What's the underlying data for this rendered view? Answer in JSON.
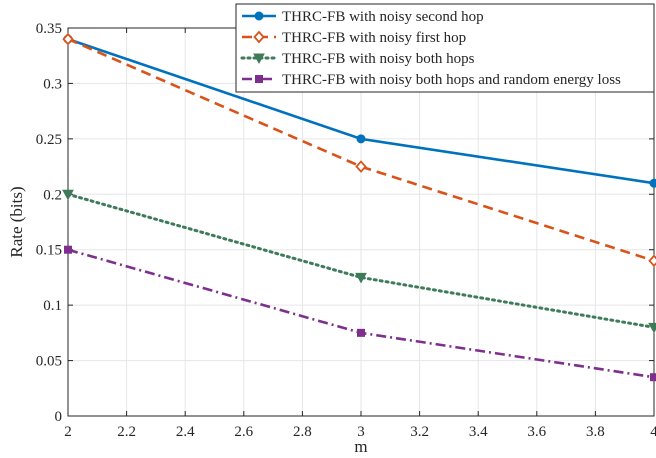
{
  "chart_data": {
    "type": "line",
    "title": "",
    "xlabel": "m",
    "ylabel": "Rate (bits)",
    "xlim": [
      2,
      4
    ],
    "ylim": [
      0,
      0.35
    ],
    "x_ticks": [
      "2",
      "2.2",
      "2.4",
      "2.6",
      "2.8",
      "3",
      "3.2",
      "3.4",
      "3.6",
      "3.8",
      "4"
    ],
    "y_ticks": [
      "0",
      "0.05",
      "0.1",
      "0.15",
      "0.2",
      "0.25",
      "0.3",
      "0.35"
    ],
    "grid": true,
    "legend_position": "top-right",
    "x": [
      2,
      3,
      4
    ],
    "series": [
      {
        "name": "THRC-FB with noisy second hop",
        "values": [
          0.34,
          0.25,
          0.21
        ],
        "color": "#0072BD",
        "line_style": "solid",
        "marker": "circle"
      },
      {
        "name": "THRC-FB with noisy first hop",
        "values": [
          0.34,
          0.225,
          0.14
        ],
        "color": "#D95319",
        "line_style": "dashed",
        "marker": "diamond"
      },
      {
        "name": "THRC-FB with noisy both hops",
        "values": [
          0.2,
          0.125,
          0.08
        ],
        "color": "#3E7B5A",
        "line_style": "dotted",
        "marker": "triangle-down"
      },
      {
        "name": "THRC-FB with noisy both hops and random energy loss",
        "values": [
          0.15,
          0.075,
          0.035
        ],
        "color": "#7E2F8E",
        "line_style": "dash-dot",
        "marker": "square"
      }
    ]
  }
}
